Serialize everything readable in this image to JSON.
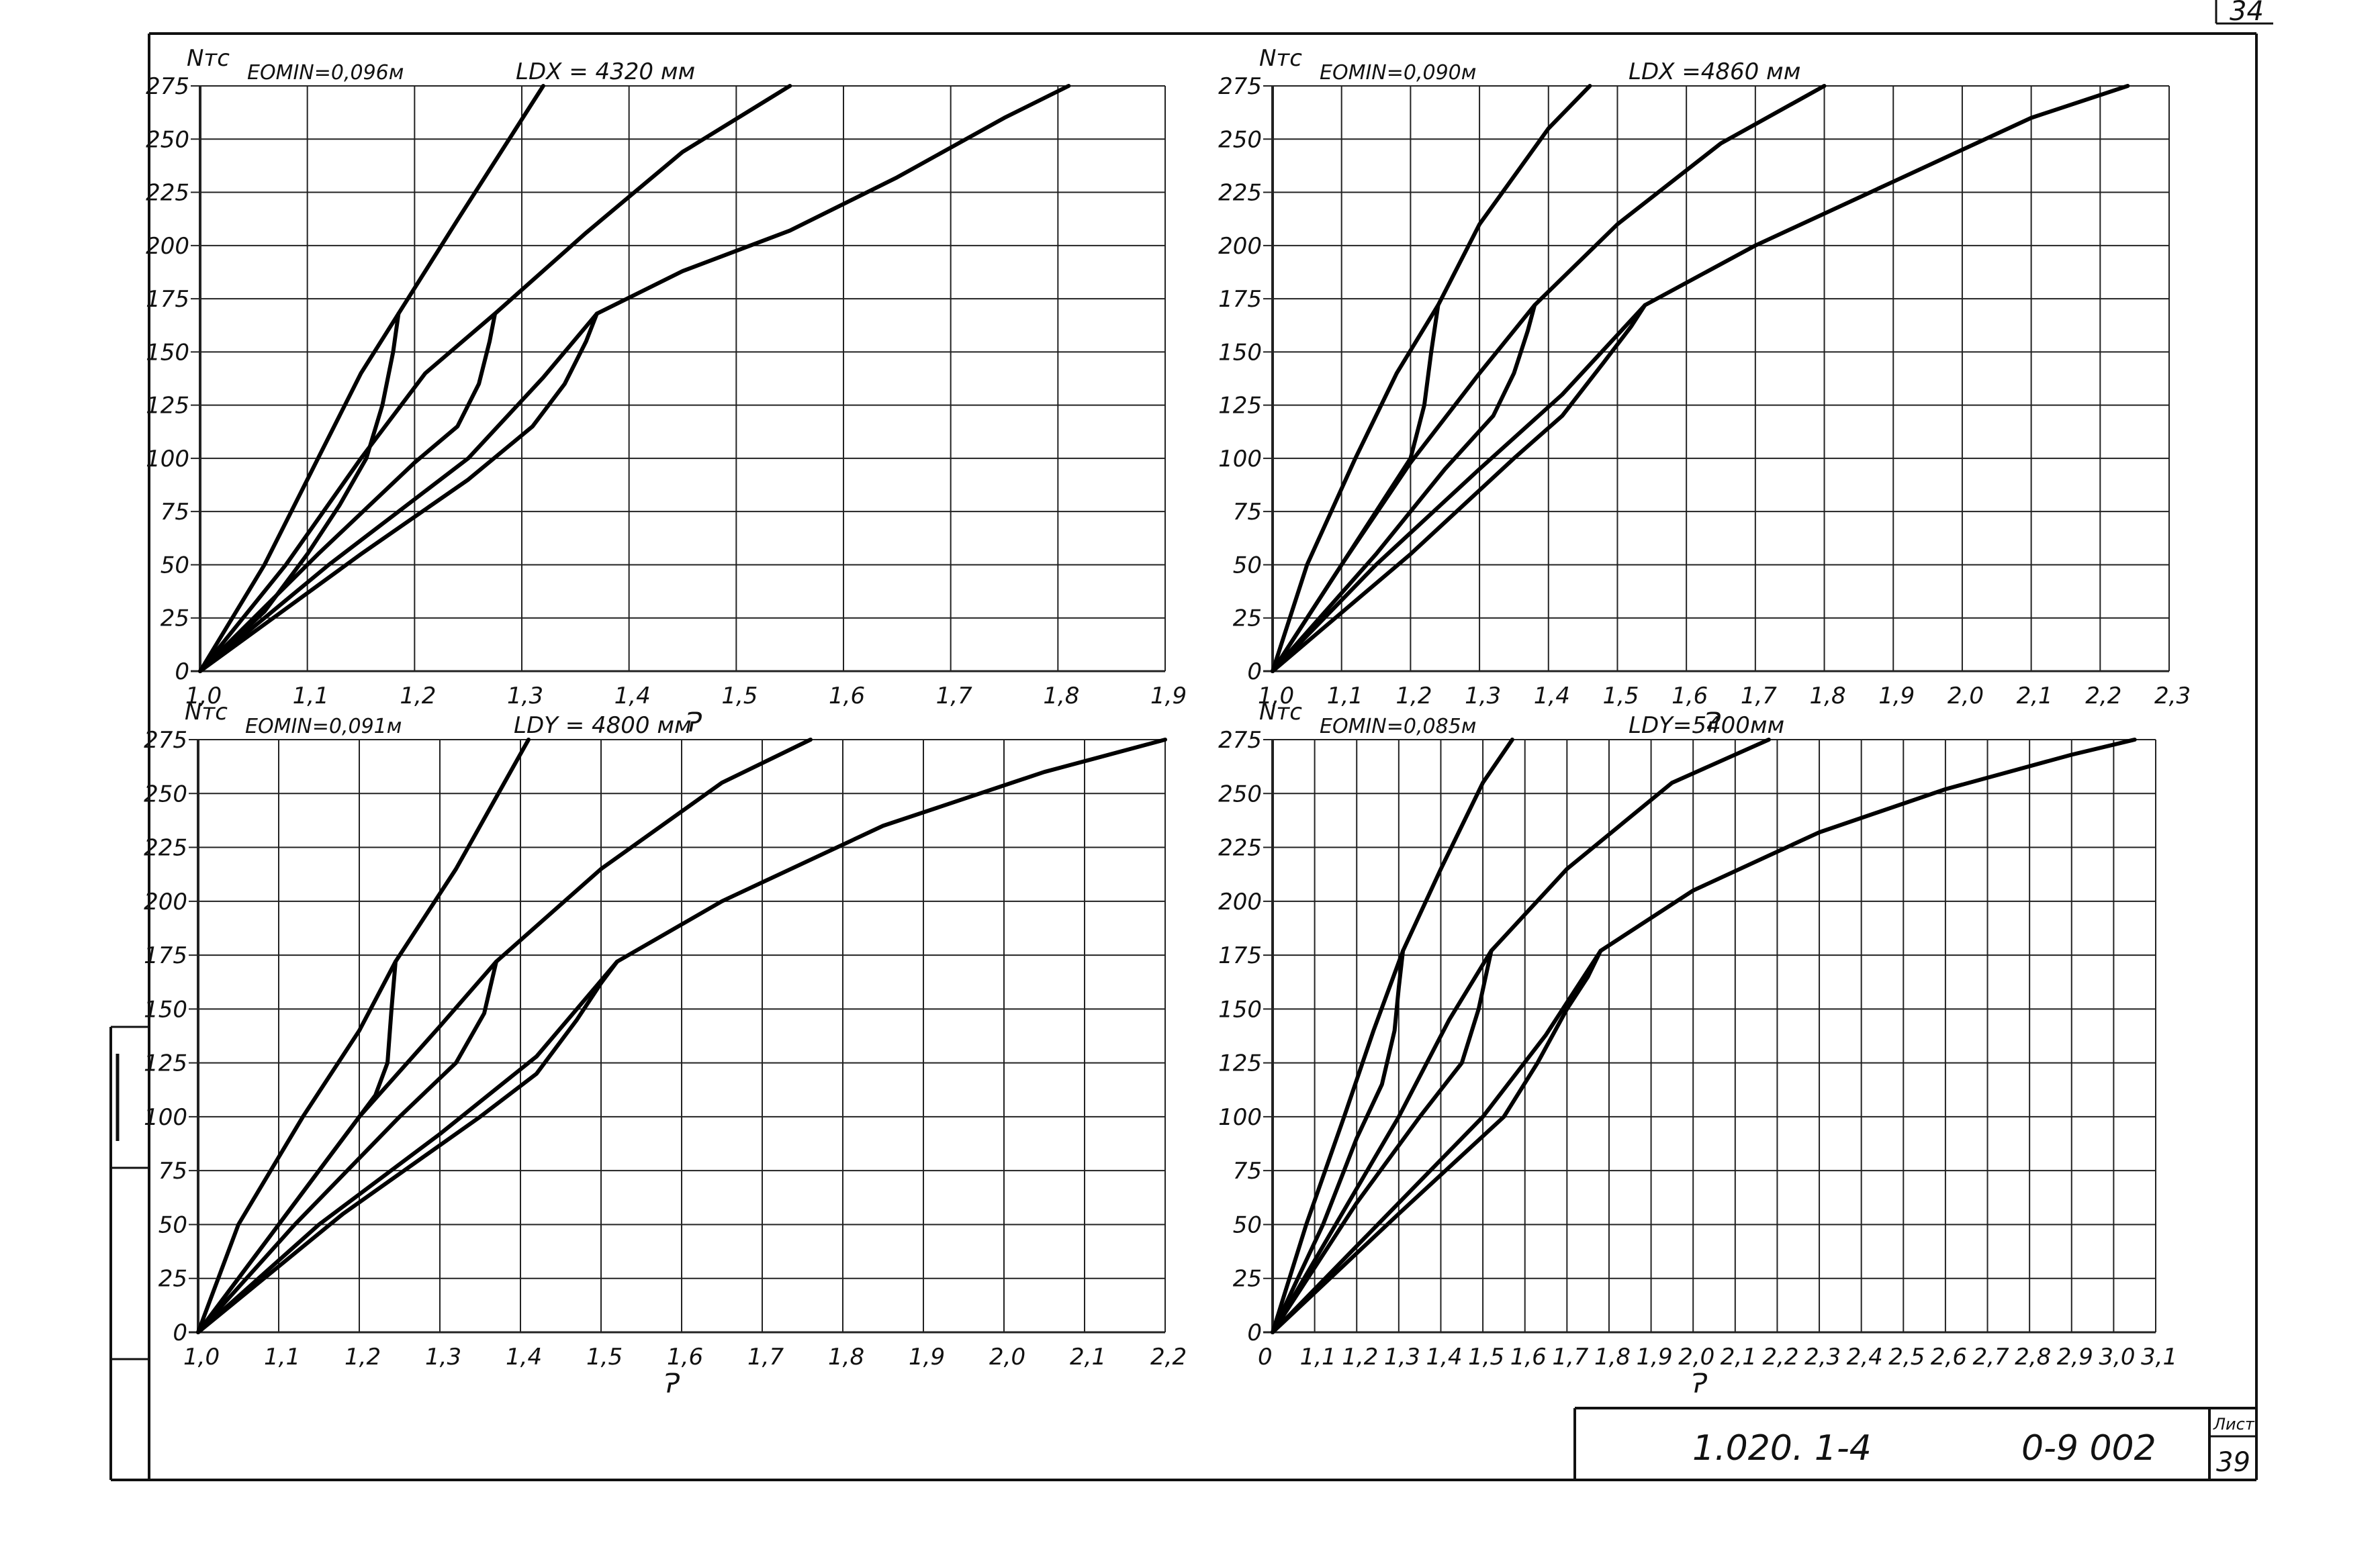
{
  "sheet": {
    "corner_mark": "34",
    "doc_code": "1.020. 1-4",
    "doc_series": "0-9 002",
    "sheet_label": "Лист",
    "sheet_number": "39"
  },
  "chart_data": [
    {
      "type": "line",
      "ylabel": "Nтс",
      "xlabel": "Ɂ",
      "note_e": "EOMIN=0,096м",
      "note_l": "LDX = 4320 мм",
      "xlim": [
        1.0,
        1.9
      ],
      "ylim": [
        0,
        275
      ],
      "x_ticks": [
        "1,0",
        "1,1",
        "1,2",
        "1,3",
        "1,4",
        "1,5",
        "1,6",
        "1,7",
        "1,8",
        "1,9"
      ],
      "y_ticks": [
        "0",
        "25",
        "50",
        "75",
        "100",
        "125",
        "150",
        "175",
        "200",
        "225",
        "250",
        "275"
      ],
      "grid": true,
      "series": [
        {
          "points": [
            [
              1.0,
              0
            ],
            [
              1.06,
              50
            ],
            [
              1.11,
              100
            ],
            [
              1.15,
              140
            ],
            [
              1.185,
              168
            ],
            [
              1.24,
              212
            ],
            [
              1.32,
              275
            ]
          ]
        },
        {
          "points": [
            [
              1.0,
              0
            ],
            [
              1.08,
              50
            ],
            [
              1.15,
              100
            ],
            [
              1.21,
              140
            ],
            [
              1.275,
              168
            ],
            [
              1.36,
              206
            ],
            [
              1.45,
              244
            ],
            [
              1.55,
              275
            ]
          ]
        },
        {
          "points": [
            [
              1.0,
              0
            ],
            [
              1.12,
              50
            ],
            [
              1.25,
              100
            ],
            [
              1.32,
              138
            ],
            [
              1.37,
              168
            ],
            [
              1.45,
              188
            ],
            [
              1.55,
              207
            ],
            [
              1.65,
              232
            ],
            [
              1.75,
              260
            ],
            [
              1.81,
              275
            ]
          ]
        },
        {
          "points": [
            [
              1.0,
              0
            ],
            [
              1.06,
              28
            ],
            [
              1.1,
              55
            ],
            [
              1.13,
              78
            ],
            [
              1.155,
              100
            ],
            [
              1.17,
              125
            ],
            [
              1.18,
              150
            ],
            [
              1.185,
              168
            ]
          ]
        },
        {
          "points": [
            [
              1.0,
              0
            ],
            [
              1.11,
              55
            ],
            [
              1.2,
              98
            ],
            [
              1.24,
              115
            ],
            [
              1.26,
              135
            ],
            [
              1.27,
              155
            ],
            [
              1.275,
              168
            ]
          ]
        },
        {
          "points": [
            [
              1.0,
              0
            ],
            [
              1.15,
              55
            ],
            [
              1.25,
              90
            ],
            [
              1.31,
              115
            ],
            [
              1.34,
              135
            ],
            [
              1.36,
              155
            ],
            [
              1.37,
              168
            ]
          ]
        }
      ]
    },
    {
      "type": "line",
      "ylabel": "Nтс",
      "xlabel": "Ɂ",
      "note_e": "EOMIN=0,090м",
      "note_l": "LDX =4860 мм",
      "xlim": [
        1.0,
        2.3
      ],
      "ylim": [
        0,
        275
      ],
      "x_ticks": [
        "1,0",
        "1,1",
        "1,2",
        "1,3",
        "1,4",
        "1,5",
        "1,6",
        "1,7",
        "1,8",
        "1,9",
        "2,0",
        "2,1",
        "2,2",
        "2,3"
      ],
      "y_ticks": [
        "0",
        "25",
        "50",
        "75",
        "100",
        "125",
        "150",
        "175",
        "200",
        "225",
        "250",
        "275"
      ],
      "grid": true,
      "series": [
        {
          "points": [
            [
              1.0,
              0
            ],
            [
              1.05,
              50
            ],
            [
              1.12,
              100
            ],
            [
              1.18,
              140
            ],
            [
              1.24,
              172
            ],
            [
              1.3,
              210
            ],
            [
              1.4,
              255
            ],
            [
              1.46,
              275
            ]
          ]
        },
        {
          "points": [
            [
              1.0,
              0
            ],
            [
              1.1,
              50
            ],
            [
              1.2,
              98
            ],
            [
              1.3,
              140
            ],
            [
              1.38,
              172
            ],
            [
              1.5,
              210
            ],
            [
              1.65,
              248
            ],
            [
              1.8,
              275
            ]
          ]
        },
        {
          "points": [
            [
              1.0,
              0
            ],
            [
              1.15,
              50
            ],
            [
              1.3,
              95
            ],
            [
              1.42,
              130
            ],
            [
              1.54,
              172
            ],
            [
              1.7,
              200
            ],
            [
              1.9,
              230
            ],
            [
              2.1,
              260
            ],
            [
              2.24,
              275
            ]
          ]
        },
        {
          "points": [
            [
              1.0,
              0
            ],
            [
              1.1,
              50
            ],
            [
              1.16,
              80
            ],
            [
              1.2,
              100
            ],
            [
              1.22,
              125
            ],
            [
              1.23,
              150
            ],
            [
              1.24,
              172
            ]
          ]
        },
        {
          "points": [
            [
              1.0,
              0
            ],
            [
              1.15,
              55
            ],
            [
              1.25,
              95
            ],
            [
              1.32,
              120
            ],
            [
              1.35,
              140
            ],
            [
              1.37,
              160
            ],
            [
              1.38,
              172
            ]
          ]
        },
        {
          "points": [
            [
              1.0,
              0
            ],
            [
              1.2,
              55
            ],
            [
              1.35,
              100
            ],
            [
              1.42,
              120
            ],
            [
              1.48,
              145
            ],
            [
              1.52,
              162
            ],
            [
              1.54,
              172
            ]
          ]
        }
      ]
    },
    {
      "type": "line",
      "ylabel": "Nтс",
      "xlabel": "Ɂ",
      "note_e": "EOMIN=0,091м",
      "note_l": "LDY = 4800 мм",
      "xlim": [
        1.0,
        2.2
      ],
      "ylim": [
        0,
        275
      ],
      "x_ticks": [
        "1,0",
        "1,1",
        "1,2",
        "1,3",
        "1,4",
        "1,5",
        "1,6",
        "1,7",
        "1,8",
        "1,9",
        "2,0",
        "2,1",
        "2,2"
      ],
      "y_ticks": [
        "0",
        "25",
        "50",
        "75",
        "100",
        "125",
        "150",
        "175",
        "200",
        "225",
        "250",
        "275"
      ],
      "grid": true,
      "series": [
        {
          "points": [
            [
              1.0,
              0
            ],
            [
              1.05,
              50
            ],
            [
              1.13,
              100
            ],
            [
              1.2,
              140
            ],
            [
              1.245,
              172
            ],
            [
              1.32,
              215
            ],
            [
              1.41,
              275
            ]
          ]
        },
        {
          "points": [
            [
              1.0,
              0
            ],
            [
              1.1,
              50
            ],
            [
              1.2,
              100
            ],
            [
              1.3,
              142
            ],
            [
              1.37,
              172
            ],
            [
              1.5,
              215
            ],
            [
              1.65,
              255
            ],
            [
              1.76,
              275
            ]
          ]
        },
        {
          "points": [
            [
              1.0,
              0
            ],
            [
              1.15,
              50
            ],
            [
              1.3,
              92
            ],
            [
              1.42,
              128
            ],
            [
              1.52,
              172
            ],
            [
              1.65,
              200
            ],
            [
              1.85,
              235
            ],
            [
              2.05,
              260
            ],
            [
              2.2,
              275
            ]
          ]
        },
        {
          "points": [
            [
              1.0,
              0
            ],
            [
              1.1,
              50
            ],
            [
              1.17,
              85
            ],
            [
              1.22,
              110
            ],
            [
              1.235,
              125
            ],
            [
              1.24,
              150
            ],
            [
              1.245,
              172
            ]
          ]
        },
        {
          "points": [
            [
              1.0,
              0
            ],
            [
              1.12,
              50
            ],
            [
              1.25,
              100
            ],
            [
              1.32,
              125
            ],
            [
              1.355,
              148
            ],
            [
              1.37,
              172
            ]
          ]
        },
        {
          "points": [
            [
              1.0,
              0
            ],
            [
              1.18,
              55
            ],
            [
              1.35,
              100
            ],
            [
              1.42,
              120
            ],
            [
              1.47,
              145
            ],
            [
              1.5,
              162
            ],
            [
              1.52,
              172
            ]
          ]
        }
      ]
    },
    {
      "type": "line",
      "ylabel": "Nтс",
      "xlabel": "Ɂ",
      "note_e": "EOMIN=0,085м",
      "note_l": "LDY=5400мм",
      "xlim": [
        1.0,
        3.1
      ],
      "ylim": [
        0,
        275
      ],
      "x_ticks": [
        "0",
        "1,1",
        "1,2",
        "1,3",
        "1,4",
        "1,5",
        "1,6",
        "1,7",
        "1,8",
        "1,9",
        "2,0",
        "2,1",
        "2,2",
        "2,3",
        "2,4",
        "2,5",
        "2,6",
        "2,7",
        "2,8",
        "2,9",
        "3,0",
        "3,1"
      ],
      "y_ticks": [
        "0",
        "25",
        "50",
        "75",
        "100",
        "125",
        "150",
        "175",
        "200",
        "225",
        "250",
        "275"
      ],
      "grid": true,
      "series": [
        {
          "points": [
            [
              1.0,
              0
            ],
            [
              1.08,
              50
            ],
            [
              1.17,
              100
            ],
            [
              1.24,
              140
            ],
            [
              1.31,
              177
            ],
            [
              1.4,
              215
            ],
            [
              1.5,
              255
            ],
            [
              1.57,
              275
            ]
          ]
        },
        {
          "points": [
            [
              1.0,
              0
            ],
            [
              1.15,
              50
            ],
            [
              1.3,
              100
            ],
            [
              1.42,
              145
            ],
            [
              1.52,
              177
            ],
            [
              1.7,
              215
            ],
            [
              1.95,
              255
            ],
            [
              2.18,
              275
            ]
          ]
        },
        {
          "points": [
            [
              1.0,
              0
            ],
            [
              1.25,
              50
            ],
            [
              1.5,
              100
            ],
            [
              1.65,
              138
            ],
            [
              1.78,
              177
            ],
            [
              2.0,
              205
            ],
            [
              2.3,
              232
            ],
            [
              2.6,
              252
            ],
            [
              2.9,
              268
            ],
            [
              3.05,
              275
            ]
          ]
        },
        {
          "points": [
            [
              1.0,
              0
            ],
            [
              1.12,
              50
            ],
            [
              1.2,
              90
            ],
            [
              1.26,
              115
            ],
            [
              1.29,
              140
            ],
            [
              1.3,
              160
            ],
            [
              1.31,
              177
            ]
          ]
        },
        {
          "points": [
            [
              1.0,
              0
            ],
            [
              1.2,
              60
            ],
            [
              1.35,
              100
            ],
            [
              1.45,
              125
            ],
            [
              1.49,
              150
            ],
            [
              1.52,
              177
            ]
          ]
        },
        {
          "points": [
            [
              1.0,
              0
            ],
            [
              1.3,
              55
            ],
            [
              1.55,
              100
            ],
            [
              1.63,
              125
            ],
            [
              1.7,
              150
            ],
            [
              1.75,
              165
            ],
            [
              1.78,
              177
            ]
          ]
        }
      ]
    }
  ]
}
